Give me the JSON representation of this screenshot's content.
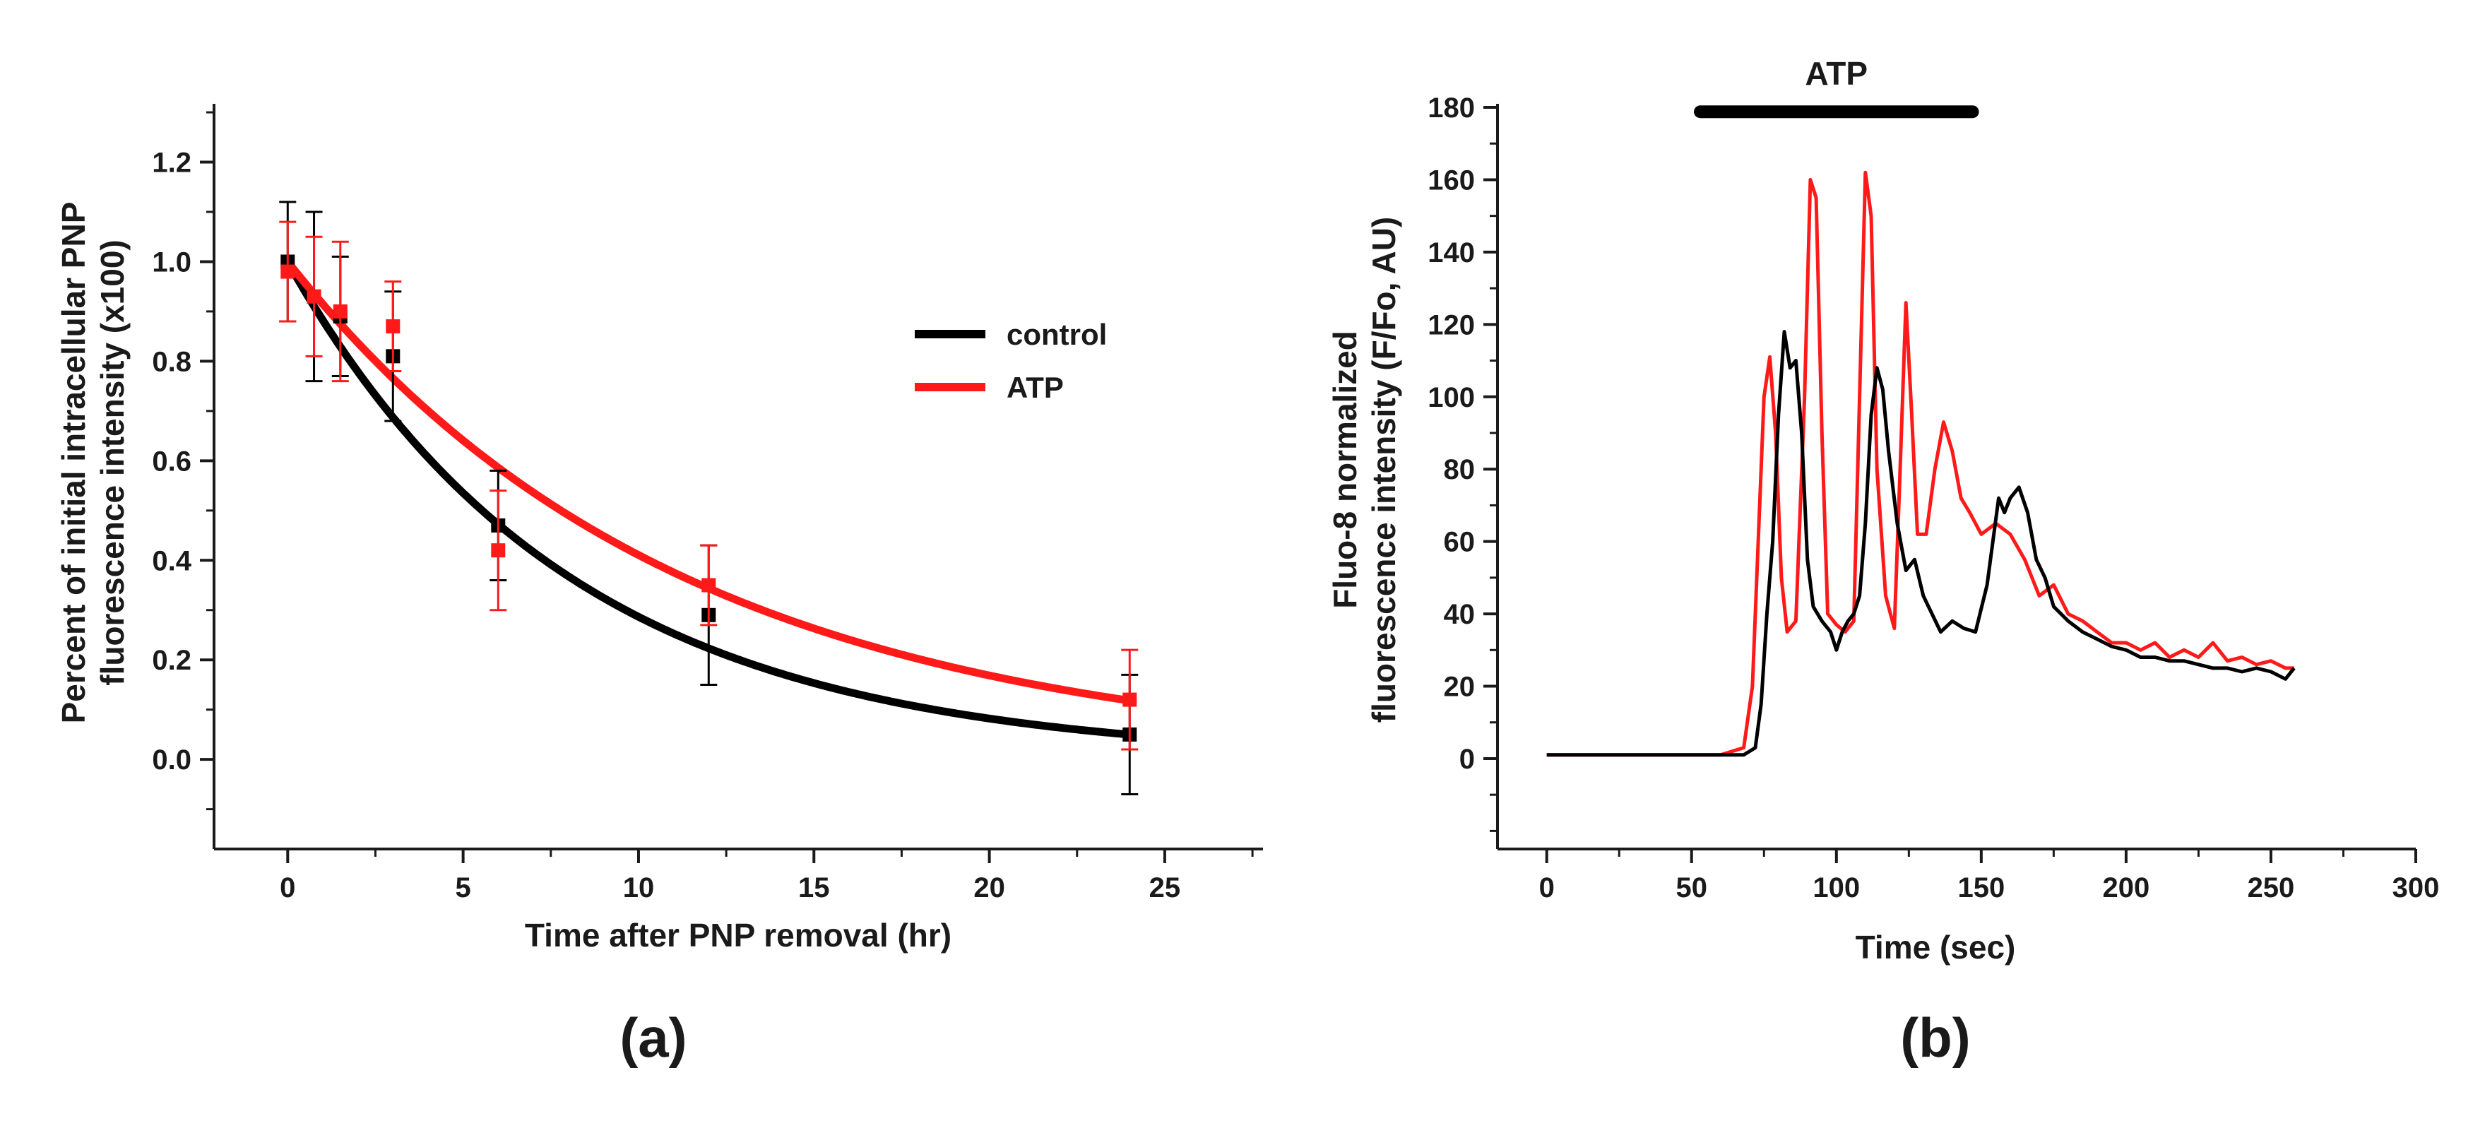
{
  "panels": [
    {
      "id": "a",
      "panel_label": "(a)",
      "chart_data": {
        "type": "scatter",
        "xlabel": "Time after PNP removal (hr)",
        "ylabel_lines": [
          "Percent of initial intracellular PNP",
          "fluorescence intensity (x100)"
        ],
        "xlim": [
          -2.1,
          27.8
        ],
        "ylim": [
          -0.18,
          1.31
        ],
        "xticks": [
          0,
          5,
          10,
          15,
          20,
          25
        ],
        "yticks": [
          0.0,
          0.2,
          0.4,
          0.6,
          0.8,
          1.0,
          1.2
        ],
        "ytick_labels": [
          "0.0",
          "0.2",
          "0.4",
          "0.6",
          "0.8",
          "1.0",
          "1.2"
        ],
        "legend_position": "right",
        "series": [
          {
            "name": "control",
            "color": "#000000",
            "x": [
              0,
              0.75,
              1.5,
              3,
              6,
              12,
              24
            ],
            "y": [
              1.0,
              0.93,
              0.89,
              0.81,
              0.47,
              0.29,
              0.05
            ],
            "err": [
              0.12,
              0.17,
              0.12,
              0.13,
              0.11,
              0.14,
              0.12
            ],
            "fit": {
              "a": 1.0,
              "k": 0.125
            }
          },
          {
            "name": "ATP",
            "color": "#ff1a1a",
            "x": [
              0,
              0.75,
              1.5,
              3,
              6,
              12,
              24
            ],
            "y": [
              0.98,
              0.93,
              0.9,
              0.87,
              0.42,
              0.35,
              0.12
            ],
            "err": [
              0.1,
              0.12,
              0.14,
              0.09,
              0.12,
              0.08,
              0.1
            ],
            "fit": {
              "a": 1.0,
              "k": 0.089
            }
          }
        ]
      }
    },
    {
      "id": "b",
      "panel_label": "(b)",
      "chart_data": {
        "type": "line",
        "xlabel": "Time (sec)",
        "ylabel_lines": [
          "Fluo-8 normalized",
          "fluorescence intensity (F/Fo, AU)"
        ],
        "xlim": [
          -17,
          300
        ],
        "ylim": [
          -25,
          180
        ],
        "xticks": [
          0,
          50,
          100,
          150,
          200,
          250,
          300
        ],
        "yticks": [
          0,
          20,
          40,
          60,
          80,
          100,
          120,
          140,
          160,
          180
        ],
        "bar": {
          "label": "ATP",
          "start": 53,
          "end": 147,
          "y": 178
        },
        "series": [
          {
            "name": "ATP",
            "color": "#ff1a1a",
            "x": [
              0,
              60,
              68,
              71,
              73,
              75,
              77,
              79,
              81,
              83,
              86,
              89,
              91,
              93,
              95,
              97,
              100,
              103,
              106,
              108,
              110,
              112,
              114,
              117,
              120,
              122,
              124,
              126,
              128,
              131,
              134,
              137,
              140,
              143,
              146,
              150,
              155,
              160,
              165,
              170,
              175,
              180,
              185,
              190,
              195,
              200,
              205,
              210,
              215,
              220,
              225,
              230,
              235,
              240,
              245,
              250,
              255,
              258
            ],
            "y": [
              1,
              1,
              3,
              20,
              60,
              100,
              111,
              90,
              50,
              35,
              38,
              100,
              160,
              155,
              90,
              40,
              37,
              35,
              38,
              100,
              162,
              150,
              80,
              45,
              36,
              80,
              126,
              95,
              62,
              62,
              80,
              93,
              85,
              72,
              68,
              62,
              65,
              62,
              55,
              45,
              48,
              40,
              38,
              35,
              32,
              32,
              30,
              32,
              28,
              30,
              28,
              32,
              27,
              28,
              26,
              27,
              25,
              25
            ]
          },
          {
            "name": "control",
            "color": "#000000",
            "x": [
              0,
              68,
              72,
              74,
              76,
              78,
              80,
              82,
              84,
              86,
              88,
              90,
              92,
              95,
              98,
              100,
              102,
              104,
              106,
              108,
              110,
              112,
              114,
              116,
              118,
              121,
              124,
              127,
              130,
              133,
              136,
              140,
              144,
              148,
              152,
              154,
              156,
              158,
              160,
              163,
              166,
              169,
              172,
              175,
              180,
              185,
              190,
              195,
              200,
              205,
              210,
              215,
              220,
              225,
              230,
              235,
              240,
              245,
              250,
              255,
              258
            ],
            "y": [
              1,
              1,
              3,
              15,
              40,
              60,
              95,
              118,
              108,
              110,
              90,
              55,
              42,
              38,
              35,
              30,
              35,
              38,
              40,
              45,
              65,
              95,
              108,
              102,
              85,
              65,
              52,
              55,
              45,
              40,
              35,
              38,
              36,
              35,
              48,
              60,
              72,
              68,
              72,
              75,
              68,
              55,
              50,
              42,
              38,
              35,
              33,
              31,
              30,
              28,
              28,
              27,
              27,
              26,
              25,
              25,
              24,
              25,
              24,
              22,
              25
            ]
          }
        ]
      }
    }
  ]
}
